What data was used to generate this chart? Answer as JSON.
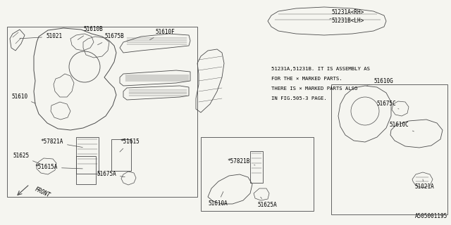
{
  "bg_color": "#f5f5f0",
  "diagram_id": "A505001195",
  "line_color": "#4a4a4a",
  "text_color": "#000000",
  "note_lines": [
    "51231A,51231B. IT IS ASSEMBLY AS",
    "FOR THE × MARKED PARTS.",
    "THERE IS × MARKED PARTS ALSO",
    "IN FIG.505-3 PAGE."
  ]
}
